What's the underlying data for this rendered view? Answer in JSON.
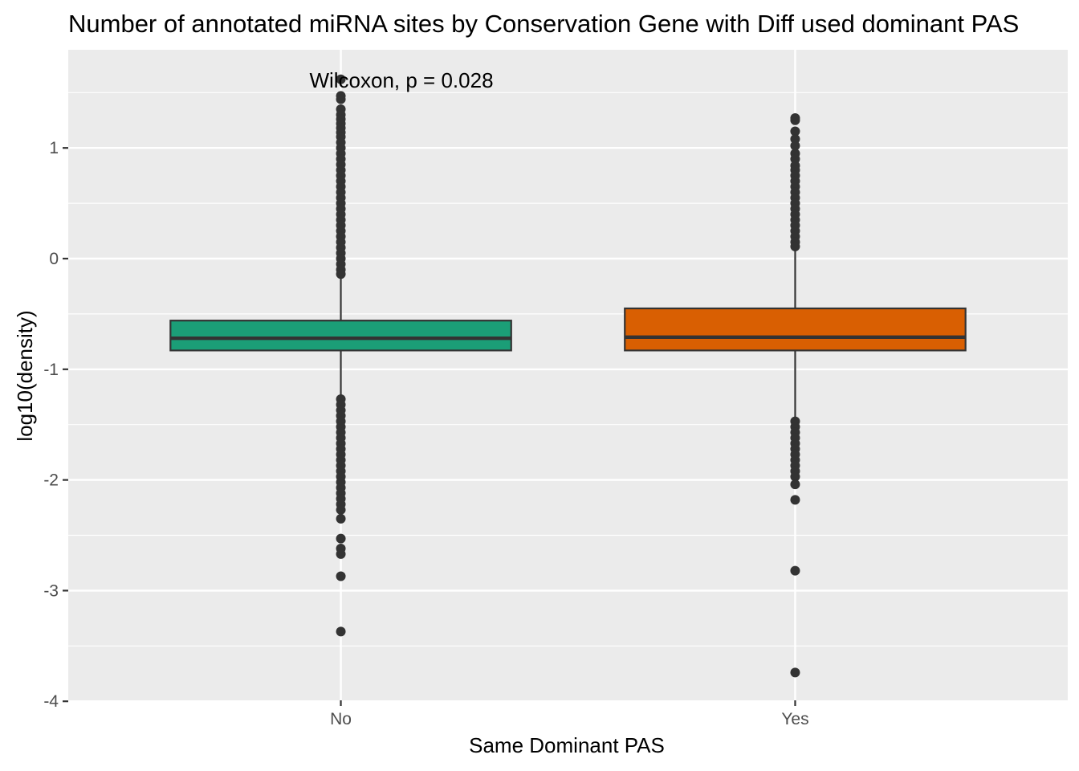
{
  "chart_data": {
    "type": "boxplot",
    "title": "Number of annotated miRNA sites by Conservation Gene with Diff used dominant PAS",
    "xlabel": "Same Dominant PAS",
    "ylabel": "log10(density)",
    "ylim": [
      -4,
      1.72
    ],
    "yticks": [
      1,
      0,
      -1,
      -2,
      -3,
      -4
    ],
    "ytick_labels": [
      "1",
      "0",
      "-1",
      "-2",
      "-3",
      "-4"
    ],
    "categories": [
      "No",
      "Yes"
    ],
    "grid": true,
    "legend": "none",
    "annotation": {
      "text": "Wilcoxon, p = 0.028",
      "x": 1.5,
      "y": 1.6
    },
    "boxes": [
      {
        "category": "No",
        "color": "#1b9e77",
        "q1": -0.83,
        "median": -0.72,
        "q3": -0.56,
        "whisker_low": -1.25,
        "whisker_high": -0.13,
        "outliers": [
          1.62,
          1.47,
          1.44,
          1.35,
          1.3,
          1.26,
          1.22,
          1.18,
          1.14,
          1.1,
          1.05,
          1.0,
          0.95,
          0.9,
          0.85,
          0.8,
          0.75,
          0.7,
          0.65,
          0.6,
          0.55,
          0.5,
          0.45,
          0.4,
          0.35,
          0.3,
          0.25,
          0.2,
          0.15,
          0.1,
          0.05,
          0.0,
          -0.05,
          -0.1,
          -0.14,
          -1.27,
          -1.32,
          -1.37,
          -1.42,
          -1.47,
          -1.52,
          -1.57,
          -1.62,
          -1.67,
          -1.72,
          -1.77,
          -1.82,
          -1.87,
          -1.92,
          -1.97,
          -2.02,
          -2.07,
          -2.12,
          -2.17,
          -2.22,
          -2.27,
          -2.35,
          -2.53,
          -2.62,
          -2.67,
          -2.87,
          -3.37
        ]
      },
      {
        "category": "Yes",
        "color": "#d95f02",
        "q1": -0.83,
        "median": -0.71,
        "q3": -0.45,
        "whisker_low": -1.45,
        "whisker_high": 0.12,
        "outliers": [
          1.27,
          1.25,
          1.15,
          1.08,
          1.02,
          0.95,
          0.9,
          0.84,
          0.8,
          0.75,
          0.7,
          0.65,
          0.6,
          0.55,
          0.5,
          0.45,
          0.4,
          0.35,
          0.3,
          0.25,
          0.2,
          0.15,
          0.11,
          -1.47,
          -1.52,
          -1.57,
          -1.62,
          -1.67,
          -1.72,
          -1.77,
          -1.82,
          -1.87,
          -1.92,
          -1.97,
          -2.04,
          -2.18,
          -2.82,
          -3.74
        ]
      }
    ]
  }
}
